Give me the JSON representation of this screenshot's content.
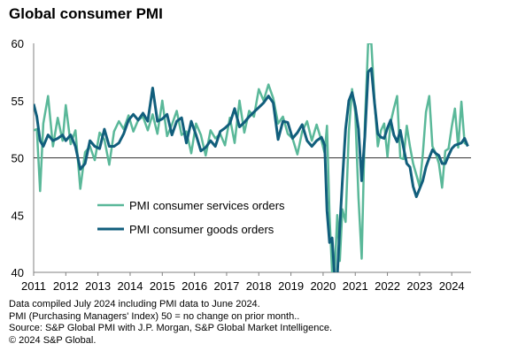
{
  "chart_data": {
    "type": "line",
    "title": "Global consumer PMI",
    "xlabel": "",
    "ylabel": "",
    "xlim": [
      2011.0,
      2024.6
    ],
    "ylim": [
      40,
      60
    ],
    "yticks": [
      40,
      45,
      50,
      55,
      60
    ],
    "xticks": [
      "2011",
      "2012",
      "2013",
      "2014",
      "2015",
      "2016",
      "2017",
      "2018",
      "2019",
      "2020",
      "2021",
      "2022",
      "2023",
      "2024"
    ],
    "reference_line": 50,
    "legend_position": "center-left",
    "series": [
      {
        "name": "PMI consumer services orders",
        "color": "#5ab899",
        "x": [
          2011.0,
          2011.1,
          2011.2,
          2011.3,
          2011.45,
          2011.6,
          2011.75,
          2011.9,
          2012.0,
          2012.15,
          2012.3,
          2012.45,
          2012.6,
          2012.75,
          2012.9,
          2013.05,
          2013.2,
          2013.35,
          2013.5,
          2013.65,
          2013.8,
          2013.95,
          2014.1,
          2014.25,
          2014.4,
          2014.55,
          2014.7,
          2014.85,
          2015.0,
          2015.15,
          2015.3,
          2015.45,
          2015.6,
          2015.75,
          2015.9,
          2016.05,
          2016.2,
          2016.35,
          2016.5,
          2016.65,
          2016.8,
          2016.95,
          2017.1,
          2017.25,
          2017.4,
          2017.55,
          2017.7,
          2017.85,
          2018.0,
          2018.15,
          2018.3,
          2018.45,
          2018.6,
          2018.75,
          2018.9,
          2019.05,
          2019.2,
          2019.35,
          2019.5,
          2019.65,
          2019.8,
          2019.95,
          2020.05,
          2020.12,
          2020.2,
          2020.28,
          2020.36,
          2020.44,
          2020.52,
          2020.6,
          2020.7,
          2020.8,
          2020.9,
          2021.0,
          2021.1,
          2021.2,
          2021.3,
          2021.4,
          2021.5,
          2021.6,
          2021.7,
          2021.8,
          2021.9,
          2022.0,
          2022.1,
          2022.2,
          2022.3,
          2022.4,
          2022.5,
          2022.6,
          2022.7,
          2022.8,
          2022.9,
          2023.0,
          2023.1,
          2023.2,
          2023.3,
          2023.4,
          2023.5,
          2023.6,
          2023.7,
          2023.8,
          2023.9,
          2024.0,
          2024.1,
          2024.2,
          2024.3,
          2024.4,
          2024.5
        ],
        "values": [
          52.4,
          52.5,
          47.1,
          53.0,
          55.4,
          51.0,
          53.5,
          51.5,
          54.6,
          51.2,
          52.4,
          47.3,
          50.5,
          51.0,
          49.8,
          52.2,
          51.6,
          49.4,
          52.3,
          53.2,
          52.5,
          53.7,
          52.3,
          53.3,
          53.6,
          52.4,
          53.8,
          52.1,
          55.0,
          51.9,
          52.9,
          54.1,
          52.0,
          52.3,
          50.4,
          53.0,
          52.0,
          50.2,
          52.4,
          51.7,
          52.1,
          51.1,
          53.5,
          51.3,
          55.0,
          52.2,
          54.1,
          53.6,
          56.0,
          55.0,
          56.4,
          55.2,
          53.0,
          53.6,
          52.1,
          51.7,
          50.3,
          52.3,
          53.2,
          51.5,
          52.9,
          51.5,
          50.4,
          52.8,
          44.9,
          40.0,
          40.0,
          45.0,
          41.0,
          45.5,
          44.4,
          52.3,
          56.0,
          54.0,
          46.5,
          41.2,
          53.0,
          60.0,
          60.0,
          55.0,
          51.0,
          52.4,
          53.0,
          50.1,
          53.1,
          54.3,
          55.4,
          50.0,
          49.9,
          52.8,
          51.0,
          49.5,
          48.5,
          47.5,
          50.3,
          54.0,
          55.4,
          51.0,
          50.4,
          49.5,
          47.4,
          50.6,
          50.8,
          52.7,
          54.3,
          50.9,
          54.9,
          51.3,
          51.1
        ]
      },
      {
        "name": "PMI consumer goods orders",
        "color": "#115e7c",
        "x": [
          2011.0,
          2011.1,
          2011.2,
          2011.3,
          2011.45,
          2011.6,
          2011.75,
          2011.9,
          2012.0,
          2012.15,
          2012.3,
          2012.45,
          2012.6,
          2012.75,
          2012.9,
          2013.05,
          2013.2,
          2013.35,
          2013.5,
          2013.65,
          2013.8,
          2013.95,
          2014.1,
          2014.25,
          2014.4,
          2014.55,
          2014.7,
          2014.85,
          2015.0,
          2015.15,
          2015.3,
          2015.45,
          2015.6,
          2015.75,
          2015.9,
          2016.05,
          2016.2,
          2016.35,
          2016.5,
          2016.65,
          2016.8,
          2016.95,
          2017.1,
          2017.25,
          2017.4,
          2017.55,
          2017.7,
          2017.85,
          2018.0,
          2018.15,
          2018.3,
          2018.45,
          2018.6,
          2018.75,
          2018.9,
          2019.05,
          2019.2,
          2019.35,
          2019.5,
          2019.65,
          2019.8,
          2019.95,
          2020.05,
          2020.12,
          2020.2,
          2020.28,
          2020.36,
          2020.44,
          2020.52,
          2020.6,
          2020.7,
          2020.8,
          2020.9,
          2021.0,
          2021.1,
          2021.2,
          2021.3,
          2021.4,
          2021.5,
          2021.6,
          2021.7,
          2021.8,
          2021.9,
          2022.0,
          2022.1,
          2022.2,
          2022.3,
          2022.4,
          2022.5,
          2022.6,
          2022.7,
          2022.8,
          2022.9,
          2023.0,
          2023.1,
          2023.2,
          2023.3,
          2023.4,
          2023.5,
          2023.6,
          2023.7,
          2023.8,
          2023.9,
          2024.0,
          2024.1,
          2024.2,
          2024.3,
          2024.4,
          2024.5
        ],
        "values": [
          54.7,
          53.6,
          51.5,
          51.0,
          52.0,
          51.5,
          51.7,
          52.0,
          51.5,
          52.0,
          51.0,
          49.0,
          49.5,
          51.5,
          51.0,
          50.8,
          52.5,
          51.0,
          51.0,
          51.3,
          52.1,
          53.3,
          53.8,
          53.3,
          53.9,
          53.2,
          56.1,
          53.2,
          53.4,
          53.8,
          52.0,
          53.2,
          53.5,
          51.3,
          53.2,
          52.0,
          50.6,
          50.9,
          51.5,
          51.0,
          52.3,
          52.6,
          53.0,
          54.3,
          52.7,
          53.1,
          53.6,
          54.0,
          54.4,
          54.8,
          55.4,
          54.8,
          51.6,
          53.2,
          53.1,
          51.7,
          52.2,
          52.9,
          51.5,
          51.0,
          51.5,
          51.8,
          51.1,
          45.4,
          42.6,
          43.0,
          39.5,
          39.6,
          44.0,
          48.0,
          52.5,
          55.0,
          55.7,
          54.5,
          52.5,
          48.0,
          51.9,
          57.5,
          57.8,
          54.8,
          52.1,
          51.8,
          51.7,
          52.6,
          53.3,
          52.0,
          51.4,
          52.4,
          50.9,
          49.5,
          49.2,
          47.5,
          46.6,
          47.3,
          48.0,
          49.2,
          50.0,
          50.7,
          50.4,
          50.2,
          49.5,
          49.5,
          50.2,
          50.8,
          51.1,
          51.2,
          51.3,
          51.7,
          51.0
        ]
      }
    ]
  },
  "notes": [
    "Data compiled July 2024 including PMI data to June 2024.",
    "PMI (Purchasing Managers' Index) 50 = no change on prior month..",
    "Source: S&P Global PMI with J.P. Morgan, S&P Global Market Intelligence.",
    "© 2024 S&P Global."
  ]
}
